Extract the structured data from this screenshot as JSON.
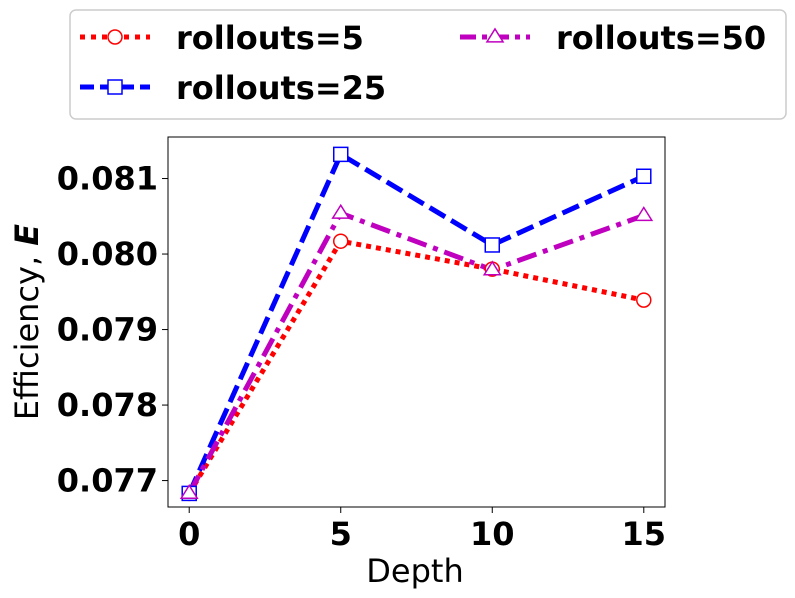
{
  "chart_data": {
    "type": "line",
    "xlabel": "Depth",
    "ylabel_prefix": "Efficiency, ",
    "ylabel_symbol": "E",
    "x": [
      0,
      5,
      10,
      15
    ],
    "x_ticks": [
      "0",
      "5",
      "10",
      "15"
    ],
    "y_ticks": [
      "0.077",
      "0.078",
      "0.079",
      "0.080",
      "0.081"
    ],
    "xlim": [
      -0.7,
      15.7
    ],
    "ylim": [
      0.07665,
      0.08155
    ],
    "grid": false,
    "legend_position": "top",
    "series": [
      {
        "name": "rollouts=5",
        "values": [
          0.07683,
          0.08017,
          0.0798,
          0.07939
        ],
        "color": "#ff0000",
        "style": "dotted",
        "marker": "circle"
      },
      {
        "name": "rollouts=25",
        "values": [
          0.07683,
          0.08132,
          0.08012,
          0.08103
        ],
        "color": "#0000ff",
        "style": "dashed",
        "marker": "square"
      },
      {
        "name": "rollouts=50",
        "values": [
          0.07683,
          0.08054,
          0.07979,
          0.08051
        ],
        "color": "#bf00bf",
        "style": "dashdot",
        "marker": "triangle"
      }
    ]
  }
}
